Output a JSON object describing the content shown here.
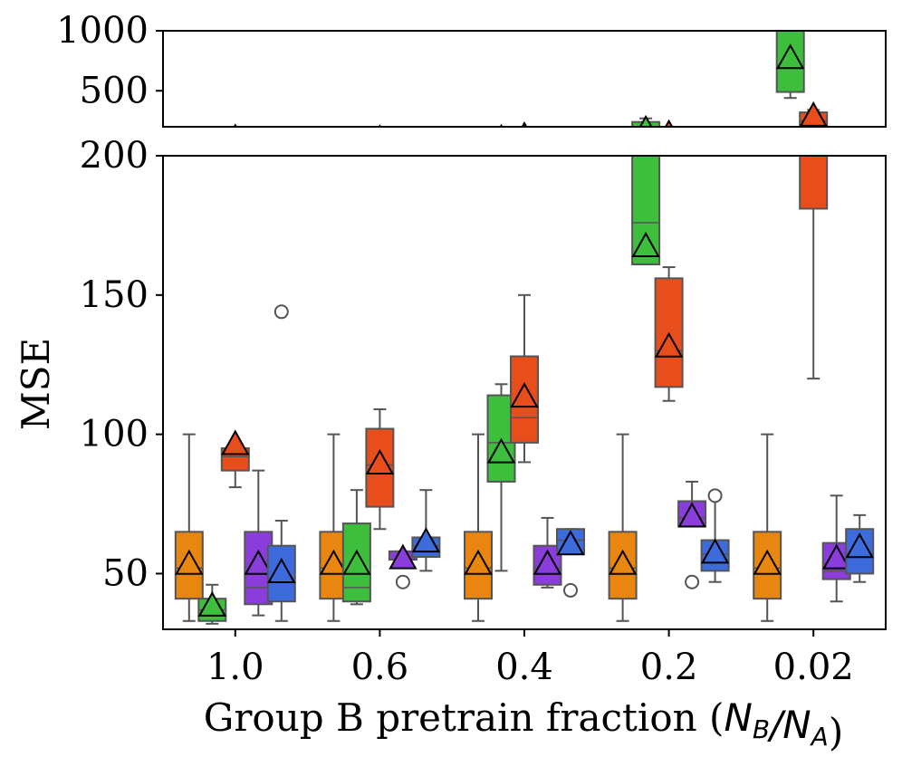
{
  "chart_data": {
    "type": "box",
    "xlabel_prefix": "Group B pretrain fraction (",
    "xlabel_math": "N_B/N_A",
    "xlabel_suffix": ")",
    "ylabel": "MSE",
    "categories": [
      "1.0",
      "0.6",
      "0.4",
      "0.2",
      "0.02"
    ],
    "broken_y_axis": {
      "upper_panel": {
        "ylim": [
          200,
          1000
        ],
        "ticks": [
          500,
          1000
        ]
      },
      "lower_panel": {
        "ylim": [
          30,
          200
        ],
        "ticks": [
          50,
          100,
          150,
          200
        ]
      }
    },
    "mean_marker": "triangle",
    "series": [
      {
        "color": "#e8860f",
        "boxes": [
          {
            "whislo": 33,
            "q1": 41,
            "med": 52,
            "q3": 65,
            "whishi": 100,
            "mean": 53,
            "fliers": []
          },
          {
            "whislo": 33,
            "q1": 41,
            "med": 52,
            "q3": 65,
            "whishi": 100,
            "mean": 53,
            "fliers": []
          },
          {
            "whislo": 33,
            "q1": 41,
            "med": 52,
            "q3": 65,
            "whishi": 100,
            "mean": 53,
            "fliers": []
          },
          {
            "whislo": 33,
            "q1": 41,
            "med": 52,
            "q3": 65,
            "whishi": 100,
            "mean": 53,
            "fliers": []
          },
          {
            "whislo": 33,
            "q1": 41,
            "med": 52,
            "q3": 65,
            "whishi": 100,
            "mean": 53,
            "fliers": []
          }
        ]
      },
      {
        "color": "#3dbf3d",
        "boxes": [
          {
            "whislo": 32,
            "q1": 33,
            "med": 37,
            "q3": 41,
            "whishi": 46,
            "mean": 38,
            "fliers": []
          },
          {
            "whislo": 39,
            "q1": 40,
            "med": 45,
            "q3": 68,
            "whishi": 80,
            "mean": 53,
            "fliers": []
          },
          {
            "whislo": 51,
            "q1": 83,
            "med": 97,
            "q3": 114,
            "whishi": 118,
            "mean": 93,
            "fliers": []
          },
          {
            "whislo": 161,
            "q1": 161,
            "med": 176,
            "q3": 240,
            "whishi": 270,
            "mean": 167,
            "fliers": []
          },
          {
            "whislo": 440,
            "q1": 490,
            "med": 1000,
            "q3": 1100,
            "whishi": 1100,
            "mean": 760,
            "fliers": []
          }
        ]
      },
      {
        "color": "#e84d1c",
        "boxes": [
          {
            "whislo": 81,
            "q1": 87,
            "med": 92,
            "q3": 95,
            "whishi": 95,
            "mean": 96,
            "fliers": []
          },
          {
            "whislo": 66,
            "q1": 74,
            "med": 89,
            "q3": 102,
            "whishi": 109,
            "mean": 89,
            "fliers": []
          },
          {
            "whislo": 90,
            "q1": 97,
            "med": 106,
            "q3": 128,
            "whishi": 150,
            "mean": 113,
            "fliers": []
          },
          {
            "whislo": 112,
            "q1": 117,
            "med": 130,
            "q3": 156,
            "whishi": 160,
            "mean": 131,
            "fliers": []
          },
          {
            "whislo": 120,
            "q1": 181,
            "med": 250,
            "q3": 320,
            "whishi": 340,
            "mean": 280,
            "fliers": []
          }
        ]
      },
      {
        "color": "#8a3ddb",
        "boxes": [
          {
            "whislo": 35,
            "q1": 39,
            "med": 45,
            "q3": 65,
            "whishi": 87,
            "mean": 53,
            "fliers": []
          },
          {
            "whislo": 55,
            "q1": 55,
            "med": 55,
            "q3": 58,
            "whishi": 58,
            "mean": 55,
            "fliers": [
              47
            ]
          },
          {
            "whislo": 45,
            "q1": 46,
            "med": 52,
            "q3": 60,
            "whishi": 70,
            "mean": 53,
            "fliers": []
          },
          {
            "whislo": 67,
            "q1": 67,
            "med": 70,
            "q3": 76,
            "whishi": 83,
            "mean": 70,
            "fliers": [
              47
            ]
          },
          {
            "whislo": 40,
            "q1": 48,
            "med": 51,
            "q3": 61,
            "whishi": 78,
            "mean": 55,
            "fliers": []
          }
        ]
      },
      {
        "color": "#3d6bdb",
        "boxes": [
          {
            "whislo": 33,
            "q1": 40,
            "med": 48,
            "q3": 60,
            "whishi": 69,
            "mean": 50,
            "fliers": [
              144
            ]
          },
          {
            "whislo": 51,
            "q1": 56,
            "med": 60,
            "q3": 63,
            "whishi": 80,
            "mean": 61,
            "fliers": []
          },
          {
            "whislo": 57,
            "q1": 57,
            "med": 62,
            "q3": 66,
            "whishi": 66,
            "mean": 60,
            "fliers": [
              44
            ]
          },
          {
            "whislo": 47,
            "q1": 51,
            "med": 57,
            "q3": 62,
            "whishi": 77,
            "mean": 57,
            "fliers": [
              78
            ]
          },
          {
            "whislo": 47,
            "q1": 50,
            "med": 57,
            "q3": 66,
            "whishi": 71,
            "mean": 59,
            "fliers": []
          }
        ]
      }
    ]
  }
}
